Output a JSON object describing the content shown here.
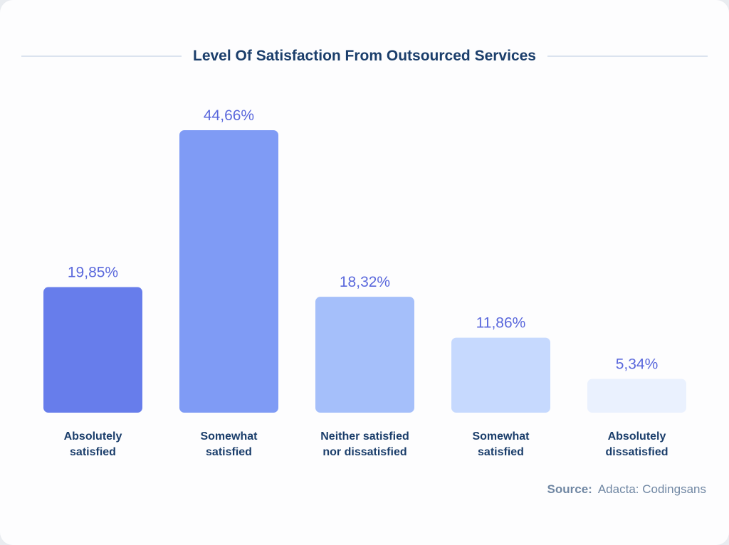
{
  "chart_data": {
    "type": "bar",
    "title": "Level Of Satisfaction From Outsourced Services",
    "categories": [
      [
        "Absolutely",
        "satisfied"
      ],
      [
        "Somewhat",
        "satisfied"
      ],
      [
        "Neither satisfied",
        "nor dissatisfied"
      ],
      [
        "Somewhat",
        "satisfied"
      ],
      [
        "Absolutely",
        "dissatisfied"
      ]
    ],
    "values": [
      19.85,
      44.66,
      18.32,
      11.86,
      5.34
    ],
    "value_labels": [
      "19,85%",
      "44,66%",
      "18,32%",
      "11,86%",
      "5,34%"
    ],
    "colors": [
      "#677deb",
      "#7f9bf5",
      "#a5bffa",
      "#c6d9fe",
      "#eaf1fe"
    ],
    "ylim": [
      0,
      44.66
    ],
    "grid": false,
    "legend": "none"
  },
  "source": {
    "label": "Source:",
    "text": "Adacta: Codingsans"
  }
}
